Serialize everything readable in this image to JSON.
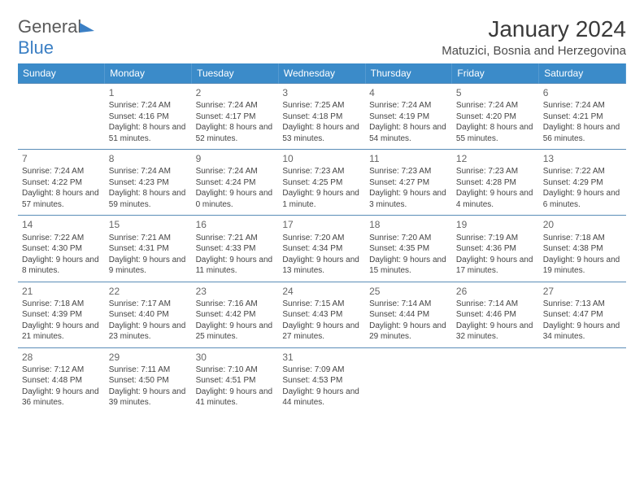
{
  "logo": {
    "word1": "General",
    "word2": "Blue"
  },
  "title": "January 2024",
  "location": "Matuzici, Bosnia and Herzegovina",
  "day_headers": [
    "Sunday",
    "Monday",
    "Tuesday",
    "Wednesday",
    "Thursday",
    "Friday",
    "Saturday"
  ],
  "start_offset": 1,
  "colors": {
    "header_bg": "#3b8bc9",
    "header_text": "#ffffff",
    "row_border": "#5b8db8",
    "brand_blue": "#3b7fc4",
    "text": "#444444",
    "daynum": "#666666"
  },
  "days": [
    {
      "n": 1,
      "sunrise": "7:24 AM",
      "sunset": "4:16 PM",
      "daylight": "8 hours and 51 minutes."
    },
    {
      "n": 2,
      "sunrise": "7:24 AM",
      "sunset": "4:17 PM",
      "daylight": "8 hours and 52 minutes."
    },
    {
      "n": 3,
      "sunrise": "7:25 AM",
      "sunset": "4:18 PM",
      "daylight": "8 hours and 53 minutes."
    },
    {
      "n": 4,
      "sunrise": "7:24 AM",
      "sunset": "4:19 PM",
      "daylight": "8 hours and 54 minutes."
    },
    {
      "n": 5,
      "sunrise": "7:24 AM",
      "sunset": "4:20 PM",
      "daylight": "8 hours and 55 minutes."
    },
    {
      "n": 6,
      "sunrise": "7:24 AM",
      "sunset": "4:21 PM",
      "daylight": "8 hours and 56 minutes."
    },
    {
      "n": 7,
      "sunrise": "7:24 AM",
      "sunset": "4:22 PM",
      "daylight": "8 hours and 57 minutes."
    },
    {
      "n": 8,
      "sunrise": "7:24 AM",
      "sunset": "4:23 PM",
      "daylight": "8 hours and 59 minutes."
    },
    {
      "n": 9,
      "sunrise": "7:24 AM",
      "sunset": "4:24 PM",
      "daylight": "9 hours and 0 minutes."
    },
    {
      "n": 10,
      "sunrise": "7:23 AM",
      "sunset": "4:25 PM",
      "daylight": "9 hours and 1 minute."
    },
    {
      "n": 11,
      "sunrise": "7:23 AM",
      "sunset": "4:27 PM",
      "daylight": "9 hours and 3 minutes."
    },
    {
      "n": 12,
      "sunrise": "7:23 AM",
      "sunset": "4:28 PM",
      "daylight": "9 hours and 4 minutes."
    },
    {
      "n": 13,
      "sunrise": "7:22 AM",
      "sunset": "4:29 PM",
      "daylight": "9 hours and 6 minutes."
    },
    {
      "n": 14,
      "sunrise": "7:22 AM",
      "sunset": "4:30 PM",
      "daylight": "9 hours and 8 minutes."
    },
    {
      "n": 15,
      "sunrise": "7:21 AM",
      "sunset": "4:31 PM",
      "daylight": "9 hours and 9 minutes."
    },
    {
      "n": 16,
      "sunrise": "7:21 AM",
      "sunset": "4:33 PM",
      "daylight": "9 hours and 11 minutes."
    },
    {
      "n": 17,
      "sunrise": "7:20 AM",
      "sunset": "4:34 PM",
      "daylight": "9 hours and 13 minutes."
    },
    {
      "n": 18,
      "sunrise": "7:20 AM",
      "sunset": "4:35 PM",
      "daylight": "9 hours and 15 minutes."
    },
    {
      "n": 19,
      "sunrise": "7:19 AM",
      "sunset": "4:36 PM",
      "daylight": "9 hours and 17 minutes."
    },
    {
      "n": 20,
      "sunrise": "7:18 AM",
      "sunset": "4:38 PM",
      "daylight": "9 hours and 19 minutes."
    },
    {
      "n": 21,
      "sunrise": "7:18 AM",
      "sunset": "4:39 PM",
      "daylight": "9 hours and 21 minutes."
    },
    {
      "n": 22,
      "sunrise": "7:17 AM",
      "sunset": "4:40 PM",
      "daylight": "9 hours and 23 minutes."
    },
    {
      "n": 23,
      "sunrise": "7:16 AM",
      "sunset": "4:42 PM",
      "daylight": "9 hours and 25 minutes."
    },
    {
      "n": 24,
      "sunrise": "7:15 AM",
      "sunset": "4:43 PM",
      "daylight": "9 hours and 27 minutes."
    },
    {
      "n": 25,
      "sunrise": "7:14 AM",
      "sunset": "4:44 PM",
      "daylight": "9 hours and 29 minutes."
    },
    {
      "n": 26,
      "sunrise": "7:14 AM",
      "sunset": "4:46 PM",
      "daylight": "9 hours and 32 minutes."
    },
    {
      "n": 27,
      "sunrise": "7:13 AM",
      "sunset": "4:47 PM",
      "daylight": "9 hours and 34 minutes."
    },
    {
      "n": 28,
      "sunrise": "7:12 AM",
      "sunset": "4:48 PM",
      "daylight": "9 hours and 36 minutes."
    },
    {
      "n": 29,
      "sunrise": "7:11 AM",
      "sunset": "4:50 PM",
      "daylight": "9 hours and 39 minutes."
    },
    {
      "n": 30,
      "sunrise": "7:10 AM",
      "sunset": "4:51 PM",
      "daylight": "9 hours and 41 minutes."
    },
    {
      "n": 31,
      "sunrise": "7:09 AM",
      "sunset": "4:53 PM",
      "daylight": "9 hours and 44 minutes."
    }
  ],
  "labels": {
    "sunrise_prefix": "Sunrise: ",
    "sunset_prefix": "Sunset: ",
    "daylight_prefix": "Daylight: "
  }
}
